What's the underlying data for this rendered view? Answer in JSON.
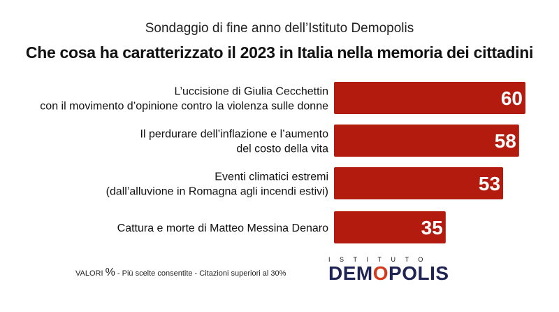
{
  "header": {
    "subtitle": "Sondaggio di fine anno dell’Istituto Demopolis",
    "title": "Che cosa ha caratterizzato il 2023 in Italia nella memoria dei cittadini"
  },
  "chart_data": {
    "type": "bar",
    "orientation": "horizontal",
    "categories": [
      [
        "L’uccisione di Giulia Cecchettin",
        "con il movimento d’opinione contro la violenza sulle donne"
      ],
      [
        "Il perdurare dell’inflazione e l’aumento",
        "del costo della vita"
      ],
      [
        "Eventi climatici estremi",
        "(dall’alluvione in Romagna agli incendi estivi)"
      ],
      [
        "Cattura e morte di Matteo Messina Denaro"
      ]
    ],
    "values": [
      60,
      58,
      53,
      35
    ],
    "bar_color": "#b31b0f",
    "value_label_color": "#ffffff",
    "xlim": [
      0,
      60
    ],
    "grid": false,
    "title": "Che cosa ha caratterizzato il 2023 in Italia nella memoria dei cittadini",
    "xlabel": "",
    "ylabel": ""
  },
  "footer": {
    "note_prefix": "VALORI",
    "note_pct": "%",
    "note_suffix": " - Più scelte consentite - Citazioni superiori al 30%",
    "logo_top": "ISTITUTO",
    "logo_main_a": "DEM",
    "logo_main_o": "O",
    "logo_main_b": "POLIS"
  }
}
